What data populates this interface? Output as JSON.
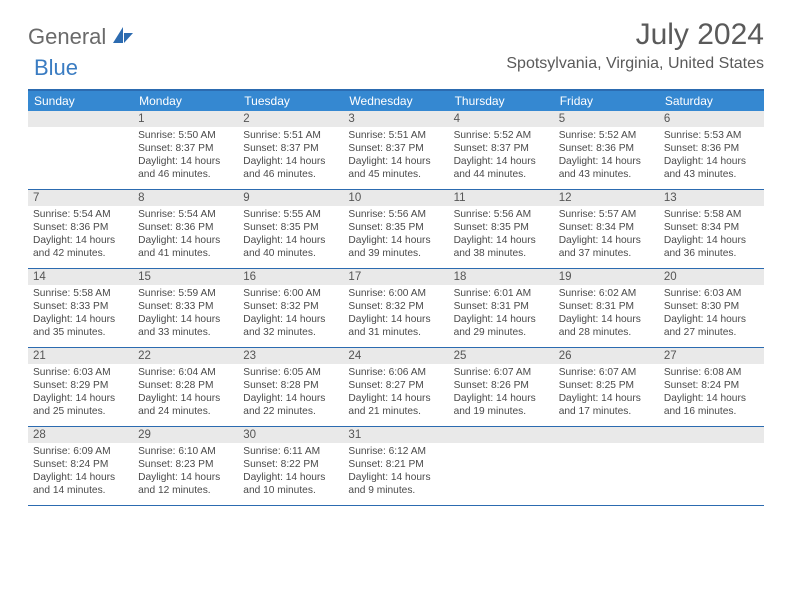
{
  "logo": {
    "text1": "General",
    "text2": "Blue"
  },
  "title": "July 2024",
  "location": "Spotsylvania, Virginia, United States",
  "colors": {
    "header_bg": "#3588d1",
    "header_text": "#ffffff",
    "border": "#2c6bb0",
    "daynum_bg": "#e9e9e9",
    "text": "#4a4a4a",
    "logo_gray": "#6a6a6a",
    "logo_blue": "#3a7cc2"
  },
  "day_names": [
    "Sunday",
    "Monday",
    "Tuesday",
    "Wednesday",
    "Thursday",
    "Friday",
    "Saturday"
  ],
  "weeks": [
    [
      {
        "n": "",
        "sr": "",
        "ss": "",
        "dl": ""
      },
      {
        "n": "1",
        "sr": "5:50 AM",
        "ss": "8:37 PM",
        "dl": "14 hours and 46 minutes."
      },
      {
        "n": "2",
        "sr": "5:51 AM",
        "ss": "8:37 PM",
        "dl": "14 hours and 46 minutes."
      },
      {
        "n": "3",
        "sr": "5:51 AM",
        "ss": "8:37 PM",
        "dl": "14 hours and 45 minutes."
      },
      {
        "n": "4",
        "sr": "5:52 AM",
        "ss": "8:37 PM",
        "dl": "14 hours and 44 minutes."
      },
      {
        "n": "5",
        "sr": "5:52 AM",
        "ss": "8:36 PM",
        "dl": "14 hours and 43 minutes."
      },
      {
        "n": "6",
        "sr": "5:53 AM",
        "ss": "8:36 PM",
        "dl": "14 hours and 43 minutes."
      }
    ],
    [
      {
        "n": "7",
        "sr": "5:54 AM",
        "ss": "8:36 PM",
        "dl": "14 hours and 42 minutes."
      },
      {
        "n": "8",
        "sr": "5:54 AM",
        "ss": "8:36 PM",
        "dl": "14 hours and 41 minutes."
      },
      {
        "n": "9",
        "sr": "5:55 AM",
        "ss": "8:35 PM",
        "dl": "14 hours and 40 minutes."
      },
      {
        "n": "10",
        "sr": "5:56 AM",
        "ss": "8:35 PM",
        "dl": "14 hours and 39 minutes."
      },
      {
        "n": "11",
        "sr": "5:56 AM",
        "ss": "8:35 PM",
        "dl": "14 hours and 38 minutes."
      },
      {
        "n": "12",
        "sr": "5:57 AM",
        "ss": "8:34 PM",
        "dl": "14 hours and 37 minutes."
      },
      {
        "n": "13",
        "sr": "5:58 AM",
        "ss": "8:34 PM",
        "dl": "14 hours and 36 minutes."
      }
    ],
    [
      {
        "n": "14",
        "sr": "5:58 AM",
        "ss": "8:33 PM",
        "dl": "14 hours and 35 minutes."
      },
      {
        "n": "15",
        "sr": "5:59 AM",
        "ss": "8:33 PM",
        "dl": "14 hours and 33 minutes."
      },
      {
        "n": "16",
        "sr": "6:00 AM",
        "ss": "8:32 PM",
        "dl": "14 hours and 32 minutes."
      },
      {
        "n": "17",
        "sr": "6:00 AM",
        "ss": "8:32 PM",
        "dl": "14 hours and 31 minutes."
      },
      {
        "n": "18",
        "sr": "6:01 AM",
        "ss": "8:31 PM",
        "dl": "14 hours and 29 minutes."
      },
      {
        "n": "19",
        "sr": "6:02 AM",
        "ss": "8:31 PM",
        "dl": "14 hours and 28 minutes."
      },
      {
        "n": "20",
        "sr": "6:03 AM",
        "ss": "8:30 PM",
        "dl": "14 hours and 27 minutes."
      }
    ],
    [
      {
        "n": "21",
        "sr": "6:03 AM",
        "ss": "8:29 PM",
        "dl": "14 hours and 25 minutes."
      },
      {
        "n": "22",
        "sr": "6:04 AM",
        "ss": "8:28 PM",
        "dl": "14 hours and 24 minutes."
      },
      {
        "n": "23",
        "sr": "6:05 AM",
        "ss": "8:28 PM",
        "dl": "14 hours and 22 minutes."
      },
      {
        "n": "24",
        "sr": "6:06 AM",
        "ss": "8:27 PM",
        "dl": "14 hours and 21 minutes."
      },
      {
        "n": "25",
        "sr": "6:07 AM",
        "ss": "8:26 PM",
        "dl": "14 hours and 19 minutes."
      },
      {
        "n": "26",
        "sr": "6:07 AM",
        "ss": "8:25 PM",
        "dl": "14 hours and 17 minutes."
      },
      {
        "n": "27",
        "sr": "6:08 AM",
        "ss": "8:24 PM",
        "dl": "14 hours and 16 minutes."
      }
    ],
    [
      {
        "n": "28",
        "sr": "6:09 AM",
        "ss": "8:24 PM",
        "dl": "14 hours and 14 minutes."
      },
      {
        "n": "29",
        "sr": "6:10 AM",
        "ss": "8:23 PM",
        "dl": "14 hours and 12 minutes."
      },
      {
        "n": "30",
        "sr": "6:11 AM",
        "ss": "8:22 PM",
        "dl": "14 hours and 10 minutes."
      },
      {
        "n": "31",
        "sr": "6:12 AM",
        "ss": "8:21 PM",
        "dl": "14 hours and 9 minutes."
      },
      {
        "n": "",
        "sr": "",
        "ss": "",
        "dl": ""
      },
      {
        "n": "",
        "sr": "",
        "ss": "",
        "dl": ""
      },
      {
        "n": "",
        "sr": "",
        "ss": "",
        "dl": ""
      }
    ]
  ],
  "labels": {
    "sunrise": "Sunrise:",
    "sunset": "Sunset:",
    "daylight": "Daylight:"
  }
}
